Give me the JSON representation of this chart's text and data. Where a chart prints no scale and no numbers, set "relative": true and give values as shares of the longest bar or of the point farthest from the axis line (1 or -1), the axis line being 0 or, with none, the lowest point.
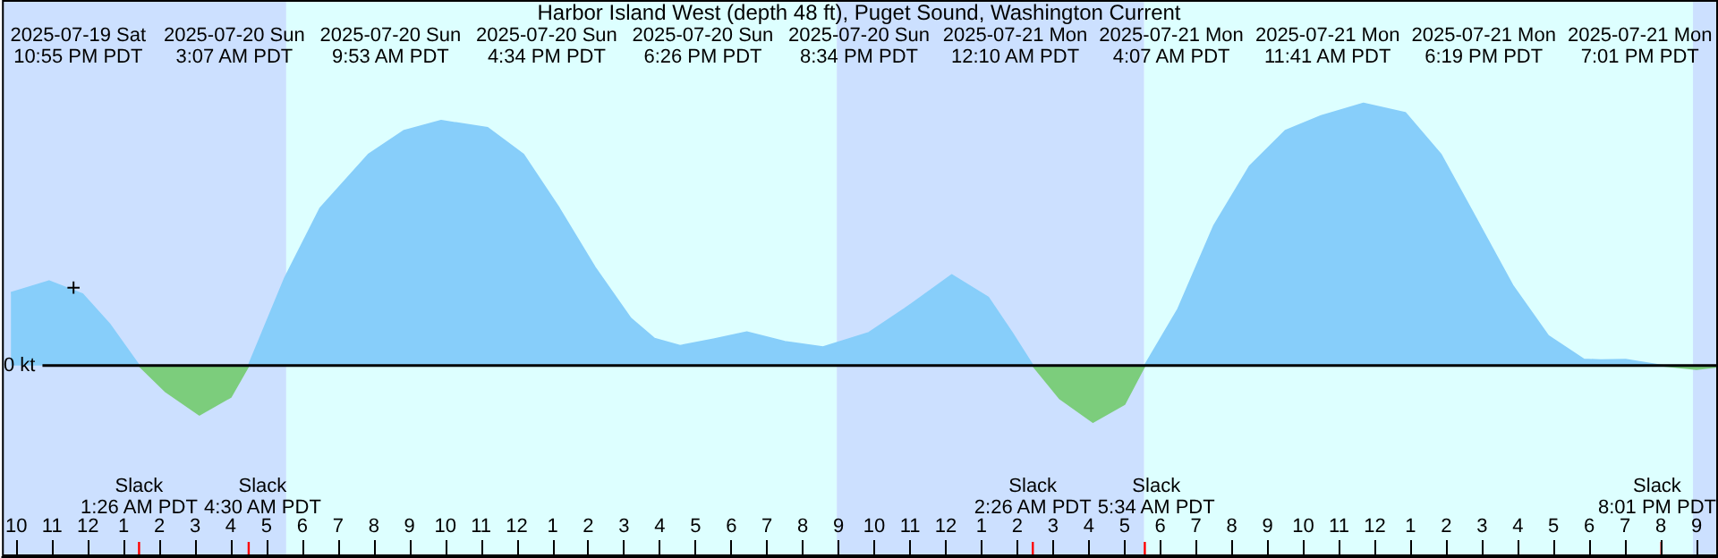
{
  "chart_data": {
    "type": "area",
    "title": "Harbor Island West (depth 48 ft), Puget Sound, Washington Current",
    "relative": true,
    "marker": "none",
    "annotations": [
      "2025-07-19 Sat\n10:55 PM PDT",
      "2025-07-20 Sun\n3:07 AM PDT",
      "2025-07-20 Sun\n9:53 AM PDT",
      "2025-07-20 Sun\n4:34 PM PDT",
      "2025-07-20 Sun\n6:26 PM PDT",
      "2025-07-20 Sun\n8:34 PM PDT",
      "2025-07-21 Mon\n12:10 AM PDT",
      "2025-07-21 Mon\n4:07 AM PDT",
      "2025-07-21 Mon\n11:41 AM PDT",
      "2025-07-21 Mon\n6:19 PM PDT",
      "2025-07-21 Mon\n7:01 PM PDT",
      {
        "text": "+",
        "x": "2025-07-19T23:36",
        "y": 0.3
      }
    ],
    "xlim": [
      "2025-07-19T21:36",
      "2025-07-21T21:36"
    ],
    "xticks": [
      {
        "value": "2025-07-19T22:00",
        "label": "10"
      },
      {
        "value": "2025-07-19T23:00",
        "label": "11"
      },
      {
        "value": "2025-07-20T00:00",
        "label": "12"
      },
      {
        "value": "2025-07-20T01:00",
        "label": "1"
      },
      {
        "value": "2025-07-20T02:00",
        "label": "2"
      },
      {
        "value": "2025-07-20T03:00",
        "label": "3"
      },
      {
        "value": "2025-07-20T04:00",
        "label": "4"
      },
      {
        "value": "2025-07-20T05:00",
        "label": "5"
      },
      {
        "value": "2025-07-20T06:00",
        "label": "6"
      },
      {
        "value": "2025-07-20T07:00",
        "label": "7"
      },
      {
        "value": "2025-07-20T08:00",
        "label": "8"
      },
      {
        "value": "2025-07-20T09:00",
        "label": "9"
      },
      {
        "value": "2025-07-20T10:00",
        "label": "10"
      },
      {
        "value": "2025-07-20T11:00",
        "label": "11"
      },
      {
        "value": "2025-07-20T12:00",
        "label": "12"
      },
      {
        "value": "2025-07-20T13:00",
        "label": "1"
      },
      {
        "value": "2025-07-20T14:00",
        "label": "2"
      },
      {
        "value": "2025-07-20T15:00",
        "label": "3"
      },
      {
        "value": "2025-07-20T16:00",
        "label": "4"
      },
      {
        "value": "2025-07-20T17:00",
        "label": "5"
      },
      {
        "value": "2025-07-20T18:00",
        "label": "6"
      },
      {
        "value": "2025-07-20T19:00",
        "label": "7"
      },
      {
        "value": "2025-07-20T20:00",
        "label": "8"
      },
      {
        "value": "2025-07-20T21:00",
        "label": "9"
      },
      {
        "value": "2025-07-20T22:00",
        "label": "10"
      },
      {
        "value": "2025-07-20T23:00",
        "label": "11"
      },
      {
        "value": "2025-07-21T00:00",
        "label": "12"
      },
      {
        "value": "2025-07-21T01:00",
        "label": "1"
      },
      {
        "value": "2025-07-21T02:00",
        "label": "2"
      },
      {
        "value": "2025-07-21T03:00",
        "label": "3"
      },
      {
        "value": "2025-07-21T04:00",
        "label": "4"
      },
      {
        "value": "2025-07-21T05:00",
        "label": "5"
      },
      {
        "value": "2025-07-21T06:00",
        "label": "6"
      },
      {
        "value": "2025-07-21T07:00",
        "label": "7"
      },
      {
        "value": "2025-07-21T08:00",
        "label": "8"
      },
      {
        "value": "2025-07-21T09:00",
        "label": "9"
      },
      {
        "value": "2025-07-21T10:00",
        "label": "10"
      },
      {
        "value": "2025-07-21T11:00",
        "label": "11"
      },
      {
        "value": "2025-07-21T12:00",
        "label": "12"
      },
      {
        "value": "2025-07-21T13:00",
        "label": "1"
      },
      {
        "value": "2025-07-21T14:00",
        "label": "2"
      },
      {
        "value": "2025-07-21T15:00",
        "label": "3"
      },
      {
        "value": "2025-07-21T16:00",
        "label": "4"
      },
      {
        "value": "2025-07-21T17:00",
        "label": "5"
      },
      {
        "value": "2025-07-21T18:00",
        "label": "6"
      },
      {
        "value": "2025-07-21T19:00",
        "label": "7"
      },
      {
        "value": "2025-07-21T20:00",
        "label": "8"
      },
      {
        "value": "2025-07-21T21:00",
        "label": "9"
      }
    ],
    "series": [
      {
        "color": "#87cefa",
        "x": [
          "2025-07-19T21:51",
          "2025-07-19T22:55",
          "2025-07-19T23:51",
          "2025-07-20T00:36",
          "2025-07-20T01:26",
          "2025-07-20T03:07",
          "2025-07-20T04:30",
          "2025-07-20T05:30",
          "2025-07-20T06:30",
          "2025-07-20T07:51",
          "2025-07-20T08:51",
          "2025-07-20T09:53",
          "2025-07-20T11:11",
          "2025-07-20T12:11",
          "2025-07-20T13:11",
          "2025-07-20T14:11",
          "2025-07-20T15:11",
          "2025-07-20T15:51",
          "2025-07-20T16:34",
          "2025-07-20T17:30",
          "2025-07-20T18:26",
          "2025-07-20T19:30",
          "2025-07-20T20:34",
          "2025-07-20T21:51",
          "2025-07-20T22:51",
          "2025-07-21T00:10",
          "2025-07-21T01:11",
          "2025-07-21T01:51",
          "2025-07-21T02:26",
          "2025-07-21T04:07",
          "2025-07-21T05:34",
          "2025-07-21T06:30",
          "2025-07-21T07:30",
          "2025-07-21T08:30",
          "2025-07-21T09:30",
          "2025-07-21T10:30",
          "2025-07-21T11:41",
          "2025-07-21T12:51",
          "2025-07-21T13:51",
          "2025-07-21T14:51",
          "2025-07-21T15:51",
          "2025-07-21T16:51",
          "2025-07-21T17:51",
          "2025-07-21T18:19",
          "2025-07-21T19:01",
          "2025-07-21T20:01"
        ],
        "values": [
          0.277,
          0.322,
          0.272,
          0.159,
          0,
          null,
          0,
          0.33,
          0.6,
          0.805,
          0.896,
          0.934,
          0.907,
          0.805,
          0.6,
          0.374,
          0.18,
          0.102,
          0.075,
          0.1,
          0.127,
          0.09,
          0.07,
          0.125,
          0.216,
          0.345,
          0.26,
          0.125,
          0,
          null,
          0,
          0.216,
          0.533,
          0.76,
          0.896,
          0.952,
          1,
          0.964,
          0.805,
          0.556,
          0.306,
          0.113,
          0.023,
          0.02,
          0.022,
          0
        ]
      },
      {
        "color": "#7ccd7c",
        "x": [
          "2025-07-20T01:26",
          "2025-07-20T02:11",
          "2025-07-20T03:07",
          "2025-07-20T04:00",
          "2025-07-20T04:30",
          "2025-07-20T15:00",
          "2025-07-21T02:26",
          "2025-07-21T03:11",
          "2025-07-21T04:07",
          "2025-07-21T05:00",
          "2025-07-21T05:34",
          "2025-07-21T12:00",
          "2025-07-21T20:01",
          "2025-07-21T21:00",
          "2025-07-21T21:36"
        ],
        "values": [
          0,
          -0.1,
          -0.188,
          -0.12,
          0,
          null,
          0,
          -0.125,
          -0.216,
          -0.147,
          0,
          null,
          0,
          -0.014,
          -0.004
        ]
      }
    ],
    "ref_lines": [
      {
        "axis": "y",
        "value": 0,
        "label": "0 kt",
        "color": "#000000"
      },
      {
        "axis": "x",
        "value": "2025-07-20T01:26",
        "label": "Slack\n1:26 AM PDT",
        "color": "#ff0000"
      },
      {
        "axis": "x",
        "value": "2025-07-20T04:30",
        "label": "Slack\n4:30 AM PDT",
        "color": "#ff0000"
      },
      {
        "axis": "x",
        "value": "2025-07-21T02:26",
        "label": "Slack\n2:26 AM PDT",
        "color": "#ff0000"
      },
      {
        "axis": "x",
        "value": "2025-07-21T05:34",
        "label": "Slack\n5:34 AM PDT",
        "color": "#ff0000"
      },
      {
        "axis": "x",
        "value": "2025-07-21T20:01",
        "label": "Slack\n8:01 PM PDT",
        "color": "#ff0000"
      }
    ],
    "bands": [
      {
        "axis": "x",
        "from": "2025-07-19T21:36",
        "to": "2025-07-20T05:33",
        "color": "#cce0ff"
      },
      {
        "axis": "x",
        "from": "2025-07-20T05:33",
        "to": "2025-07-20T20:57",
        "color": "#ddffff"
      },
      {
        "axis": "x",
        "from": "2025-07-20T20:57",
        "to": "2025-07-21T05:33",
        "color": "#cce0ff"
      },
      {
        "axis": "x",
        "from": "2025-07-21T05:33",
        "to": "2025-07-21T20:54",
        "color": "#ddffff"
      },
      {
        "axis": "x",
        "from": "2025-07-21T20:54",
        "to": "2025-07-21T21:36",
        "color": "#cce0ff"
      }
    ]
  }
}
